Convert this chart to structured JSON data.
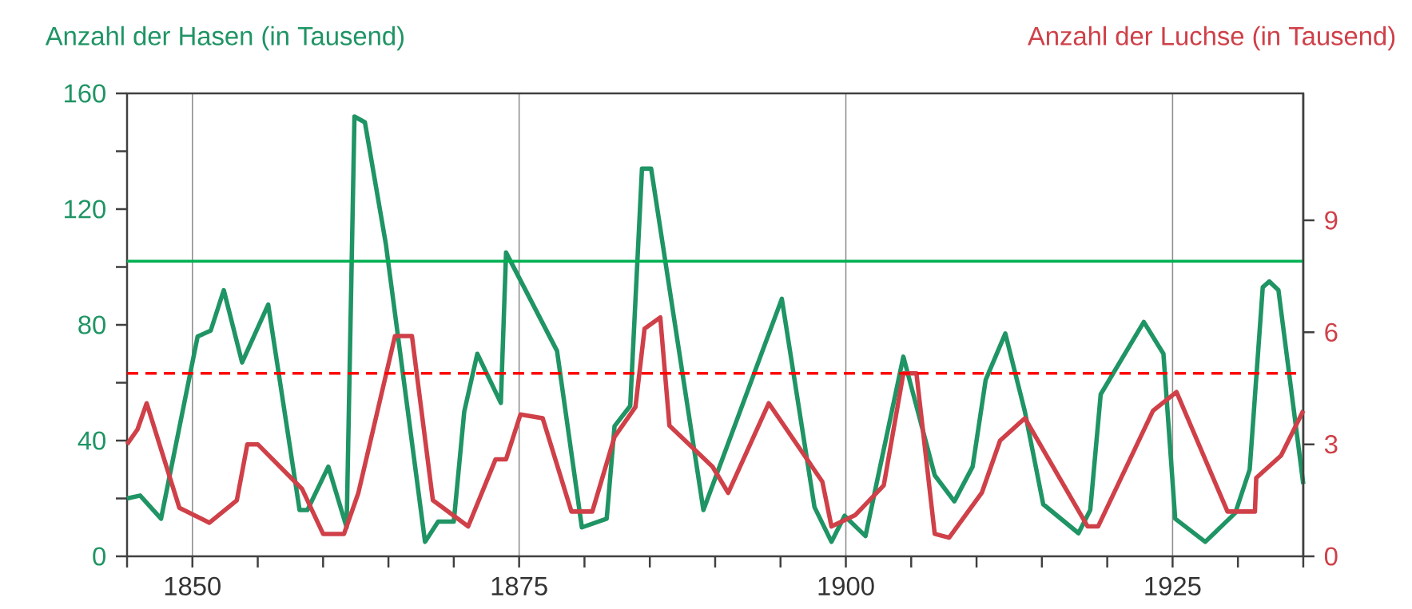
{
  "chart_data": {
    "type": "line",
    "ylabel": "Anzahl der Hasen (in Tausend)",
    "y2label": "Anzahl der Luchse (in Tausend)",
    "xlim": [
      1845,
      1935
    ],
    "xticks": [
      {
        "value": 1845,
        "label": null
      },
      1850,
      {
        "value": 1855,
        "label": null
      },
      {
        "value": 1860,
        "label": null
      },
      {
        "value": 1865,
        "label": null
      },
      {
        "value": 1870,
        "label": null
      },
      1875,
      {
        "value": 1880,
        "label": null
      },
      {
        "value": 1885,
        "label": null
      },
      {
        "value": 1890,
        "label": null
      },
      {
        "value": 1895,
        "label": null
      },
      1900,
      {
        "value": 1905,
        "label": null
      },
      {
        "value": 1910,
        "label": null
      },
      {
        "value": 1915,
        "label": null
      },
      {
        "value": 1920,
        "label": null
      },
      1925,
      {
        "value": 1930,
        "label": null
      },
      {
        "value": 1935,
        "label": null
      }
    ],
    "ylim": [
      0,
      160
    ],
    "yticks": [
      0,
      {
        "value": 20,
        "label": null
      },
      40,
      {
        "value": 60,
        "label": null
      },
      80,
      {
        "value": 100,
        "label": null
      },
      120,
      {
        "value": 140,
        "label": null
      },
      160
    ],
    "y2lim": [
      0,
      12.4
    ],
    "y2ticks": [
      0,
      3,
      6,
      9
    ],
    "grid": "x",
    "series": [
      {
        "color": "#1f9464",
        "axis": "y",
        "x": [
          1845.0,
          1846.0,
          1847.6,
          1850.4,
          1851.4,
          1852.4,
          1853.8,
          1855.8,
          1858.2,
          1858.8,
          1860.4,
          1861.8,
          1862.4,
          1863.2,
          1864.8,
          1867.8,
          1868.8,
          1870.0,
          1870.8,
          1871.8,
          1873.6,
          1874.0,
          1877.9,
          1879.8,
          1881.7,
          1882.3,
          1883.5,
          1884.4,
          1885.1,
          1889.1,
          1895.1,
          1897.6,
          1898.9,
          1899.9,
          1901.5,
          1904.4,
          1906.8,
          1908.3,
          1909.7,
          1910.7,
          1912.2,
          1913.7,
          1915.1,
          1917.8,
          1918.7,
          1919.5,
          1922.8,
          1924.3,
          1925.2,
          1927.5,
          1929.8,
          1930.9,
          1931.9,
          1932.4,
          1933.1,
          1935.0
        ],
        "values": [
          20,
          21,
          13,
          76,
          78,
          92,
          67,
          87,
          16,
          16,
          31,
          10,
          152,
          150,
          108,
          5,
          12,
          12,
          50,
          70,
          53,
          105,
          71,
          10,
          13,
          45,
          52,
          134,
          134,
          16,
          89,
          17,
          5,
          14,
          7,
          69,
          28,
          19,
          31,
          61,
          77,
          50,
          18,
          8,
          16,
          56,
          81,
          70,
          13,
          5,
          15,
          30,
          93,
          95,
          92,
          25
        ]
      },
      {
        "color": "#cf4048",
        "axis": "y2",
        "x": [
          1845.0,
          1845.8,
          1846.5,
          1849.0,
          1851.3,
          1853.4,
          1854.2,
          1855.0,
          1858.4,
          1860.0,
          1861.6,
          1862.7,
          1865.5,
          1866.8,
          1868.4,
          1871.1,
          1873.2,
          1874.0,
          1875.1,
          1876.8,
          1879.0,
          1880.6,
          1882.3,
          1883.9,
          1884.6,
          1885.8,
          1886.5,
          1889.8,
          1891.0,
          1894.1,
          1898.2,
          1898.9,
          1900.7,
          1902.9,
          1904.4,
          1905.4,
          1906.8,
          1907.9,
          1910.4,
          1911.8,
          1913.7,
          1918.5,
          1919.3,
          1923.5,
          1925.3,
          1929.2,
          1931.3,
          1931.4,
          1933.3,
          1935.0
        ],
        "values": [
          3.0,
          3.4,
          4.1,
          1.3,
          0.9,
          1.5,
          3.0,
          3.0,
          1.8,
          0.6,
          0.6,
          1.7,
          5.9,
          5.9,
          1.5,
          0.8,
          2.6,
          2.6,
          3.8,
          3.7,
          1.2,
          1.2,
          3.2,
          4.0,
          6.1,
          6.4,
          3.5,
          2.4,
          1.7,
          4.1,
          2.0,
          0.8,
          1.1,
          1.9,
          4.9,
          4.9,
          0.6,
          0.5,
          1.7,
          3.1,
          3.7,
          0.8,
          0.8,
          3.9,
          4.4,
          1.2,
          1.2,
          2.1,
          2.7,
          3.9
        ]
      }
    ],
    "ref_lines": [
      {
        "axis": "y",
        "value": 102,
        "color": "#00b050",
        "line_style": "solid"
      },
      {
        "axis": "y2",
        "value": 4.9,
        "color": "#ff0000",
        "line_style": "dashed"
      }
    ]
  }
}
